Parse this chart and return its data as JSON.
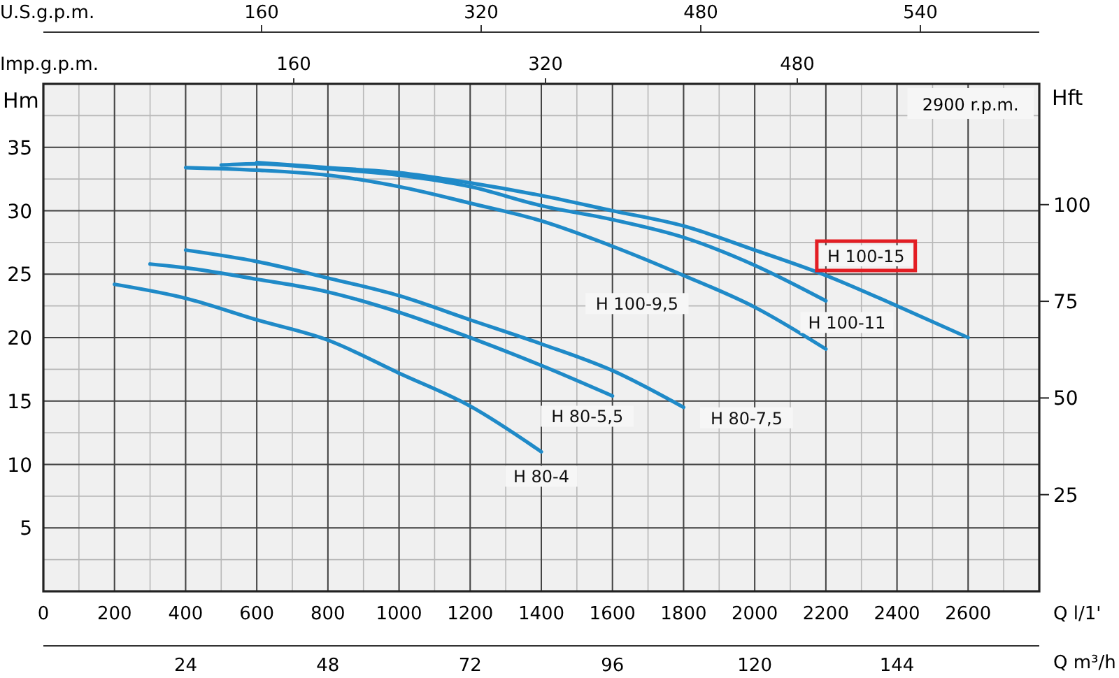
{
  "chart_data": {
    "type": "line",
    "ylabel": "Hm",
    "y2label": "Hft",
    "xlabel": "Q l/1'",
    "x2label": "Q m³/h",
    "xlim": [
      0,
      2800
    ],
    "xticks": [
      0,
      200,
      400,
      600,
      800,
      1000,
      1200,
      1400,
      1600,
      1800,
      2000,
      2200,
      2400,
      2600
    ],
    "ylim": [
      0,
      40
    ],
    "yticks": [
      5,
      10,
      15,
      20,
      25,
      30,
      35
    ],
    "y2lim": [
      0,
      131.23
    ],
    "y2ticks": [
      25,
      50,
      75,
      100
    ],
    "x2lim": [
      0,
      168
    ],
    "x2ticks": [
      24,
      48,
      72,
      96,
      120,
      144
    ],
    "grid": true,
    "legend": false,
    "marker": "none",
    "line_style": "solid",
    "annotations": [
      "2900 r.p.m.",
      "U.S.g.p.m.",
      "160",
      "320",
      "480",
      "540",
      "Imp.g.p.m.",
      "160",
      "320",
      "480"
    ],
    "series": [
      {
        "name": "H 80-4",
        "color": "#1f8ac8",
        "x": [
          200,
          400,
          600,
          800,
          1000,
          1200,
          1400
        ],
        "values": [
          24.2,
          23.1,
          21.4,
          19.8,
          17.2,
          14.6,
          11.0
        ]
      },
      {
        "name": "H 80-5,5",
        "color": "#1f8ac8",
        "x": [
          300,
          400,
          600,
          800,
          1000,
          1200,
          1400,
          1600
        ],
        "values": [
          25.8,
          25.5,
          24.6,
          23.6,
          22.0,
          20.0,
          17.8,
          15.4
        ]
      },
      {
        "name": "H 80-7,5",
        "color": "#1f8ac8",
        "x": [
          400,
          600,
          800,
          1000,
          1200,
          1400,
          1600,
          1800
        ],
        "values": [
          26.9,
          26.0,
          24.7,
          23.3,
          21.4,
          19.5,
          17.4,
          14.5
        ]
      },
      {
        "name": "H 100-9,5",
        "color": "#1f8ac8",
        "x": [
          400,
          600,
          800,
          1000,
          1200,
          1400,
          1600,
          1800,
          2000,
          2200
        ],
        "values": [
          33.4,
          33.2,
          32.8,
          31.9,
          30.6,
          29.2,
          27.2,
          24.9,
          22.4,
          19.1
        ]
      },
      {
        "name": "H 100-11",
        "color": "#1f8ac8",
        "x": [
          500,
          600,
          800,
          1000,
          1200,
          1400,
          1600,
          1800,
          2000,
          2200
        ],
        "values": [
          33.6,
          33.7,
          33.3,
          32.8,
          31.9,
          30.4,
          29.3,
          27.9,
          25.7,
          22.9
        ]
      },
      {
        "name": "H 100-15",
        "color": "#1f8ac8",
        "x": [
          600,
          800,
          1000,
          1200,
          1400,
          1600,
          1800,
          2000,
          2200,
          2400,
          2600
        ],
        "values": [
          33.8,
          33.4,
          33.0,
          32.2,
          31.2,
          30.0,
          28.8,
          26.9,
          24.9,
          22.5,
          20.0
        ]
      }
    ]
  }
}
